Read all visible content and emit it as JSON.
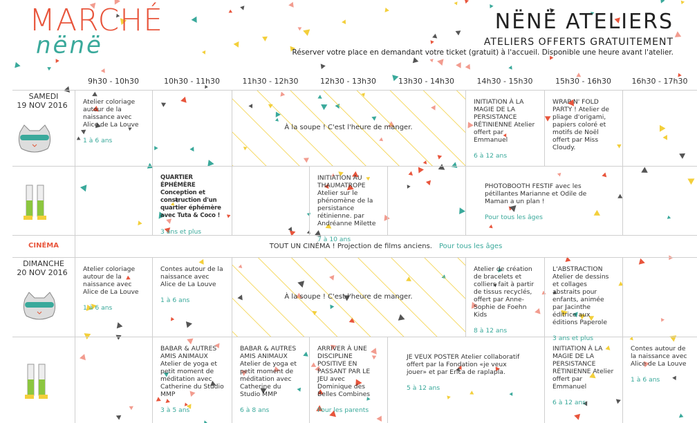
{
  "header": {
    "logo_title": "MARCHÉ",
    "logo_sub": "nënë",
    "brand": "NËNË ATELIERS",
    "subtitle": "ATELIERS OFFERTS GRATUITEMENT",
    "note": "Réserver votre place en demandant votre ticket (gratuit) à l'accueil. Disponible une heure avant l'atelier."
  },
  "times": [
    "9h30 - 10h30",
    "10h30 - 11h30",
    "11h30 - 12h30",
    "12h30 - 13h30",
    "13h30 - 14h30",
    "14h30 - 15h30",
    "15h30 - 16h30",
    "16h30 - 17h30"
  ],
  "days": [
    {
      "name": "SAMEDI",
      "date": "19 NOV 2016",
      "rows": [
        [
          {
            "text": "Atelier coloriage autour de la naissance avec Alice de La Louve",
            "age": "1 à 6 ans"
          },
          {
            "text": "À la soupe ! C'est l'heure de manger."
          },
          {
            "text": "INITIATION À LA MAGIE DE LA PERSISTANCE RÉTINIENNE Atelier offert par Emmanuel",
            "age": "6 à 12 ans"
          },
          {
            "text": "WRAP N' FOLD PARTY ! Atelier de pliage d'origami, papiers coloré et motifs de Noël offert par Miss Cloudy."
          }
        ],
        [
          {
            "text": "QUARTIER ÉPHÉMÈRE Conception et construction d'un quartier éphémère avec Tuta & Coco !",
            "age": "3 ans et plus"
          },
          {
            "text": "INITIATION AU THAUMATROPE Atelier sur le phénomène de la persistance rétinienne. par Andréanne Milette",
            "age": "7 à 10 ans"
          },
          {
            "text": "PHOTOBOOTH FESTIF avec les pétillantes Marianne et Odile de Maman a un plan !",
            "age": "Pour tous les âges"
          }
        ]
      ]
    },
    {
      "name": "DIMANCHE",
      "date": "20 NOV 2016",
      "rows": [
        [
          {
            "text": "Atelier coloriage autour de la naissance avec Alice de La Louve",
            "age": "1 à 6 ans"
          },
          {
            "text": "Contes autour de la naissance avec Alice de La Louve",
            "age": "1 à 6 ans"
          },
          {
            "text": "À la soupe ! C'est l'heure de manger."
          },
          {
            "text": "Atelier de création de bracelets et colliers fait à partir de tissus recyclés, offert par Anne-Sophie de Foehn Kids",
            "age": "8 à 12 ans"
          },
          {
            "text": "L'ABSTRACTION Atelier de dessins et collages abstraits pour enfants, animée par Jacinthe éditrice aux éditions Paperole",
            "age": "3 ans et plus"
          }
        ],
        [
          {
            "text": "BABAR & AUTRES AMIS ANIMAUX Atelier de yoga et petit moment de méditation avec Catherine du Studio MMP",
            "age": "3 à 5 ans"
          },
          {
            "text": "BABAR & AUTRES AMIS ANIMAUX Atelier de yoga et petit moment de méditation avec Catherine du Studio MMP",
            "age": "6 à 8 ans"
          },
          {
            "text": "ARRIVER À UNE DISCIPLINE POSITIVE EN PASSANT PAR LE JEU avec Dominique des Belles Combines",
            "age": "Pour les parents"
          },
          {
            "text": "JE VEUX POSTER Atelier collaboratif offert par la Fondation «je veux jouer» et par Erica de raplapla.",
            "age": "5 à 12 ans"
          },
          {
            "text": "INITIATION À LA MAGIE DE LA PERSISTANCE RÉTINIENNE Atelier offert par Emmanuel",
            "age": "6 à 12 ans"
          },
          {
            "text": "Contes autour de la naissance avec Alice de La Louve",
            "age": "1 à 6 ans"
          }
        ]
      ]
    }
  ],
  "cinema": {
    "label": "CINÉMA",
    "text": "TOUT UN CINÉMA ! Projection de films anciens.",
    "age": "Pour tous les âges"
  }
}
